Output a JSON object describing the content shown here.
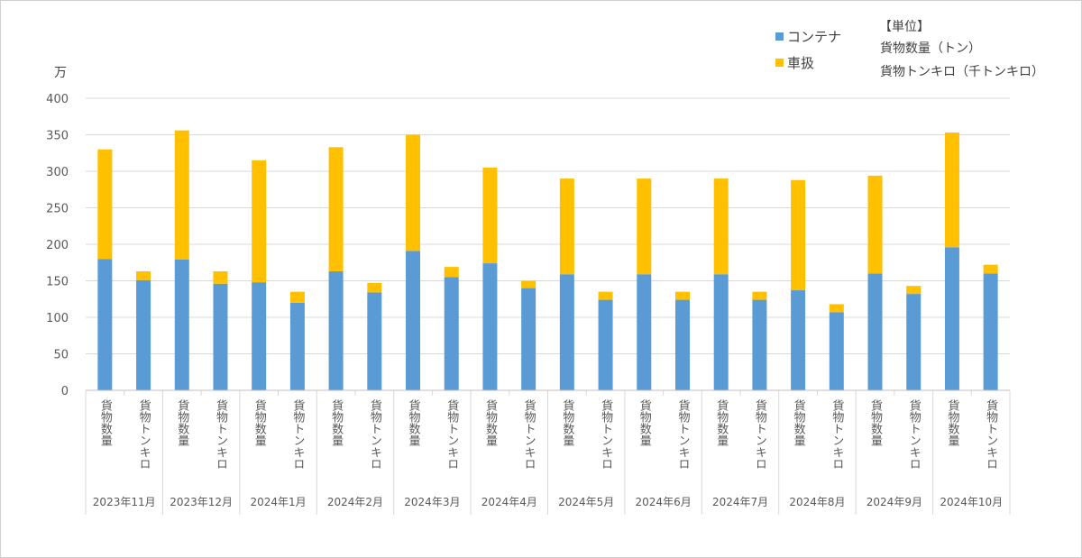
{
  "chart_data": {
    "type": "bar",
    "stacked": true,
    "y_unit_label": "万",
    "ylim": [
      0,
      400
    ],
    "yticks": [
      0,
      50,
      100,
      150,
      200,
      250,
      300,
      350,
      400
    ],
    "grid": true,
    "legend_placement": "top-right",
    "groups": [
      "2023年11月",
      "2023年12月",
      "2024年1月",
      "2024年2月",
      "2024年3月",
      "2024年4月",
      "2024年5月",
      "2024年6月",
      "2024年7月",
      "2024年8月",
      "2024年9月",
      "2024年10月"
    ],
    "sub_categories": [
      "貨物数量",
      "貨物トンキロ"
    ],
    "series": [
      {
        "name": "コンテナ",
        "color": "#5b9bd5",
        "values": [
          180,
          151,
          179,
          146,
          148,
          120,
          163,
          134,
          191,
          155,
          174,
          140,
          159,
          124,
          159,
          124,
          159,
          124,
          137,
          107,
          160,
          132,
          196,
          160
        ]
      },
      {
        "name": "車扱",
        "color": "#ffc000",
        "values": [
          150,
          12,
          177,
          17,
          167,
          15,
          170,
          13,
          159,
          14,
          131,
          10,
          131,
          11,
          131,
          11,
          131,
          11,
          151,
          11,
          134,
          11,
          157,
          12
        ]
      }
    ]
  },
  "unit_note": {
    "heading": "【単位】",
    "line1": "貨物数量（トン）",
    "line2": "貨物トンキロ（千トンキロ）"
  }
}
